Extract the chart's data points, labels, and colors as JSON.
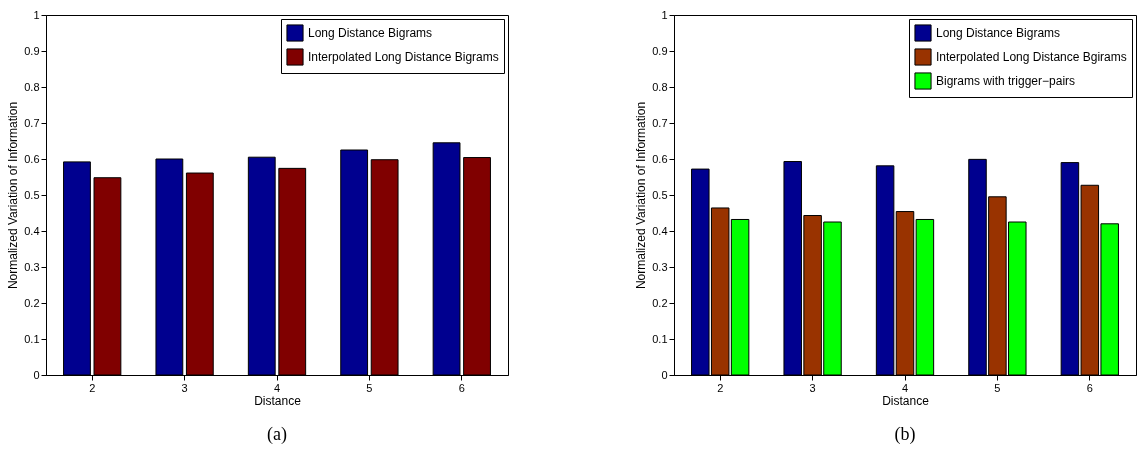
{
  "chart_data": [
    {
      "type": "bar",
      "categories": [
        "2",
        "3",
        "4",
        "5",
        "6"
      ],
      "xlabel": "Distance",
      "ylabel": "Normalized Variation of Information",
      "ylim": [
        0,
        1
      ],
      "yticks": [
        0,
        0.1,
        0.2,
        0.3,
        0.4,
        0.5,
        0.6,
        0.7,
        0.8,
        0.9,
        1
      ],
      "grid": false,
      "legend": "top right",
      "annotations": [
        "(a)"
      ],
      "series": [
        {
          "name": "Long Distance Bigrams",
          "color": "#00008f",
          "values": [
            0.592,
            0.6,
            0.605,
            0.625,
            0.645
          ]
        },
        {
          "name": "Interpolated Long Distance Bigrams",
          "color": "#800000",
          "values": [
            0.548,
            0.561,
            0.574,
            0.598,
            0.604
          ]
        }
      ]
    },
    {
      "type": "bar",
      "categories": [
        "2",
        "3",
        "4",
        "5",
        "6"
      ],
      "xlabel": "Distance",
      "ylabel": "Normalized Variation of Information",
      "ylim": [
        0,
        1
      ],
      "yticks": [
        0,
        0.1,
        0.2,
        0.3,
        0.4,
        0.5,
        0.6,
        0.7,
        0.8,
        0.9,
        1
      ],
      "grid": false,
      "legend": "top right",
      "annotations": [
        "(b)"
      ],
      "series": [
        {
          "name": "Long Distance Bigrams",
          "color": "#00008f",
          "values": [
            0.572,
            0.593,
            0.581,
            0.599,
            0.59
          ]
        },
        {
          "name": "Interpolated Long Distance Bgirams",
          "color": "#993300",
          "values": [
            0.464,
            0.443,
            0.454,
            0.495,
            0.527
          ]
        },
        {
          "name": "Bigrams with trigger−pairs",
          "color": "#00ff00",
          "values": [
            0.432,
            0.425,
            0.432,
            0.425,
            0.42
          ]
        }
      ]
    }
  ]
}
